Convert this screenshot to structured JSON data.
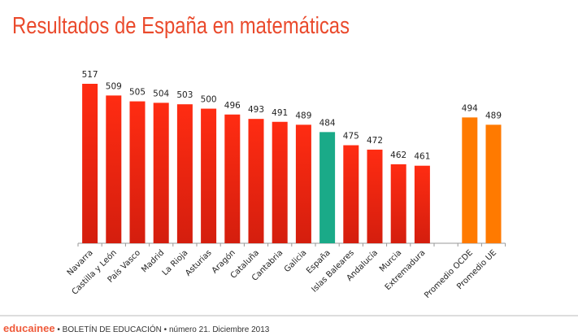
{
  "chart_data": {
    "type": "bar",
    "title": "Resultados de España en matemáticas",
    "categories": [
      "Navarra",
      "Castilla y León",
      "País Vasco",
      "Madrid",
      "La Rioja",
      "Asturias",
      "Aragón",
      "Cataluña",
      "Cantabria",
      "Galicia",
      "España",
      "Islas Baleares",
      "Andalucía",
      "Murcia",
      "Extremadura",
      "",
      "Promedio OCDE",
      "Promedio UE"
    ],
    "values": [
      517,
      509,
      505,
      504,
      503,
      500,
      496,
      493,
      491,
      489,
      484,
      475,
      472,
      462,
      461,
      null,
      494,
      489
    ],
    "groups": [
      "region",
      "region",
      "region",
      "region",
      "region",
      "region",
      "region",
      "region",
      "region",
      "region",
      "national",
      "region",
      "region",
      "region",
      "region",
      "gap",
      "average",
      "average"
    ],
    "colors": {
      "region": "#f82a14",
      "national": "#1aaa88",
      "average": "#ff7a00"
    },
    "ylim": [
      408,
      520
    ],
    "xlabel": "",
    "ylabel": "",
    "grid": false,
    "legend": "none"
  },
  "footer": {
    "brand": "educainee",
    "text": " • BOLETÍN DE EDUCACIÓN • número 21. Diciembre 2013"
  }
}
